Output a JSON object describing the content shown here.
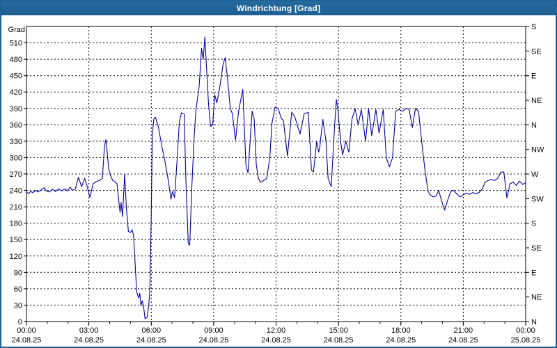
{
  "window": {
    "title": "Windrichtung [Grad]"
  },
  "colors": {
    "titlebar_bg": "#1e6295",
    "border": "#1e6295",
    "plot_bg": "#ffffff",
    "frame": "#000000",
    "grid": "#000000",
    "text": "#000000",
    "line": "#0000a8"
  },
  "chart_data": {
    "type": "line",
    "title": "Windrichtung [Grad]",
    "ylabel_left": "Grad",
    "ylim": [
      0,
      540
    ],
    "xlim_hours": [
      0,
      24
    ],
    "grid": "dashed",
    "legend_position": "none",
    "y_left_ticks": [
      0,
      30,
      60,
      90,
      120,
      150,
      180,
      210,
      240,
      270,
      300,
      330,
      360,
      390,
      420,
      450,
      480,
      510
    ],
    "y_right_ticks": [
      {
        "deg": 0,
        "label": "N"
      },
      {
        "deg": 45,
        "label": "NE"
      },
      {
        "deg": 90,
        "label": "E"
      },
      {
        "deg": 135,
        "label": "SE"
      },
      {
        "deg": 180,
        "label": "S"
      },
      {
        "deg": 225,
        "label": "SW"
      },
      {
        "deg": 270,
        "label": "W"
      },
      {
        "deg": 315,
        "label": "NW"
      },
      {
        "deg": 360,
        "label": "N"
      },
      {
        "deg": 405,
        "label": "NE"
      },
      {
        "deg": 450,
        "label": "E"
      },
      {
        "deg": 495,
        "label": "SE"
      },
      {
        "deg": 540,
        "label": "S"
      }
    ],
    "x_ticks": [
      {
        "hour": 0,
        "time": "00:00",
        "date": "24.08.25"
      },
      {
        "hour": 3,
        "time": "03:00",
        "date": "24.08.25"
      },
      {
        "hour": 6,
        "time": "06:00",
        "date": "24.08.25"
      },
      {
        "hour": 9,
        "time": "09:00",
        "date": "24.08.25"
      },
      {
        "hour": 12,
        "time": "12:00",
        "date": "24.08.25"
      },
      {
        "hour": 15,
        "time": "15:00",
        "date": "24.08.25"
      },
      {
        "hour": 18,
        "time": "18:00",
        "date": "24.08.25"
      },
      {
        "hour": 21,
        "time": "21:00",
        "date": "24.08.25"
      },
      {
        "hour": 24,
        "time": "00:00",
        "date": "25.08.25"
      }
    ],
    "x_minor_step_hours": 1,
    "series": [
      {
        "name": "Windrichtung",
        "color": "#0000a8",
        "points": [
          [
            0.0,
            237
          ],
          [
            0.1,
            234
          ],
          [
            0.2,
            238
          ],
          [
            0.3,
            236
          ],
          [
            0.45,
            240
          ],
          [
            0.55,
            237
          ],
          [
            0.7,
            241
          ],
          [
            0.85,
            245
          ],
          [
            0.95,
            239
          ],
          [
            1.1,
            237
          ],
          [
            1.25,
            242
          ],
          [
            1.4,
            238
          ],
          [
            1.55,
            243
          ],
          [
            1.7,
            239
          ],
          [
            1.85,
            243
          ],
          [
            1.95,
            239
          ],
          [
            2.1,
            246
          ],
          [
            2.2,
            240
          ],
          [
            2.35,
            243
          ],
          [
            2.5,
            264
          ],
          [
            2.65,
            247
          ],
          [
            2.8,
            262
          ],
          [
            2.9,
            250
          ],
          [
            3.05,
            227
          ],
          [
            3.2,
            252
          ],
          [
            3.35,
            256
          ],
          [
            3.5,
            258
          ],
          [
            3.65,
            262
          ],
          [
            3.75,
            320
          ],
          [
            3.82,
            333
          ],
          [
            3.88,
            311
          ],
          [
            3.95,
            280
          ],
          [
            4.05,
            266
          ],
          [
            4.15,
            258
          ],
          [
            4.25,
            256
          ],
          [
            4.35,
            252
          ],
          [
            4.5,
            200
          ],
          [
            4.55,
            218
          ],
          [
            4.62,
            192
          ],
          [
            4.72,
            270
          ],
          [
            4.8,
            210
          ],
          [
            4.9,
            165
          ],
          [
            5.0,
            163
          ],
          [
            5.08,
            168
          ],
          [
            5.15,
            157
          ],
          [
            5.3,
            54
          ],
          [
            5.4,
            43
          ],
          [
            5.45,
            52
          ],
          [
            5.5,
            30
          ],
          [
            5.57,
            38
          ],
          [
            5.63,
            28
          ],
          [
            5.7,
            5
          ],
          [
            5.8,
            8
          ],
          [
            5.88,
            30
          ],
          [
            5.93,
            56
          ],
          [
            6.0,
            200
          ],
          [
            6.05,
            340
          ],
          [
            6.12,
            370
          ],
          [
            6.2,
            374
          ],
          [
            6.35,
            355
          ],
          [
            6.5,
            322
          ],
          [
            6.65,
            295
          ],
          [
            6.8,
            262
          ],
          [
            6.95,
            224
          ],
          [
            7.02,
            238
          ],
          [
            7.12,
            227
          ],
          [
            7.25,
            300
          ],
          [
            7.35,
            365
          ],
          [
            7.45,
            382
          ],
          [
            7.58,
            380
          ],
          [
            7.68,
            240
          ],
          [
            7.78,
            143
          ],
          [
            7.85,
            140
          ],
          [
            7.95,
            245
          ],
          [
            8.05,
            330
          ],
          [
            8.15,
            388
          ],
          [
            8.3,
            430
          ],
          [
            8.42,
            500
          ],
          [
            8.5,
            480
          ],
          [
            8.58,
            521
          ],
          [
            8.65,
            470
          ],
          [
            8.75,
            400
          ],
          [
            8.85,
            357
          ],
          [
            8.95,
            360
          ],
          [
            9.05,
            415
          ],
          [
            9.15,
            400
          ],
          [
            9.3,
            430
          ],
          [
            9.45,
            470
          ],
          [
            9.55,
            483
          ],
          [
            9.65,
            450
          ],
          [
            9.8,
            390
          ],
          [
            9.9,
            380
          ],
          [
            10.05,
            332
          ],
          [
            10.2,
            385
          ],
          [
            10.4,
            425
          ],
          [
            10.55,
            287
          ],
          [
            10.65,
            272
          ],
          [
            10.85,
            385
          ],
          [
            10.95,
            370
          ],
          [
            11.05,
            287
          ],
          [
            11.15,
            262
          ],
          [
            11.25,
            255
          ],
          [
            11.4,
            258
          ],
          [
            11.55,
            262
          ],
          [
            11.7,
            300
          ],
          [
            11.8,
            362
          ],
          [
            11.95,
            392
          ],
          [
            12.1,
            390
          ],
          [
            12.25,
            372
          ],
          [
            12.35,
            368
          ],
          [
            12.55,
            303
          ],
          [
            12.75,
            383
          ],
          [
            12.9,
            375
          ],
          [
            13.15,
            343
          ],
          [
            13.35,
            380
          ],
          [
            13.55,
            383
          ],
          [
            13.7,
            277
          ],
          [
            13.8,
            274
          ],
          [
            13.95,
            330
          ],
          [
            14.05,
            310
          ],
          [
            14.1,
            318
          ],
          [
            14.25,
            370
          ],
          [
            14.4,
            330
          ],
          [
            14.5,
            262
          ],
          [
            14.65,
            247
          ],
          [
            14.8,
            350
          ],
          [
            14.9,
            406
          ],
          [
            14.97,
            390
          ],
          [
            15.1,
            330
          ],
          [
            15.2,
            305
          ],
          [
            15.35,
            330
          ],
          [
            15.5,
            310
          ],
          [
            15.65,
            370
          ],
          [
            15.8,
            390
          ],
          [
            15.95,
            360
          ],
          [
            16.1,
            388
          ],
          [
            16.3,
            330
          ],
          [
            16.45,
            390
          ],
          [
            16.6,
            340
          ],
          [
            16.8,
            388
          ],
          [
            16.95,
            345
          ],
          [
            17.15,
            388
          ],
          [
            17.3,
            300
          ],
          [
            17.45,
            283
          ],
          [
            17.6,
            300
          ],
          [
            17.75,
            385
          ],
          [
            17.9,
            388
          ],
          [
            18.1,
            385
          ],
          [
            18.25,
            390
          ],
          [
            18.4,
            388
          ],
          [
            18.55,
            355
          ],
          [
            18.7,
            390
          ],
          [
            18.85,
            385
          ],
          [
            19.0,
            330
          ],
          [
            19.15,
            280
          ],
          [
            19.3,
            240
          ],
          [
            19.4,
            232
          ],
          [
            19.55,
            228
          ],
          [
            19.7,
            230
          ],
          [
            19.82,
            240
          ],
          [
            19.95,
            222
          ],
          [
            20.1,
            204
          ],
          [
            20.25,
            222
          ],
          [
            20.4,
            238
          ],
          [
            20.55,
            240
          ],
          [
            20.7,
            233
          ],
          [
            20.85,
            228
          ],
          [
            21.0,
            232
          ],
          [
            21.15,
            235
          ],
          [
            21.3,
            233
          ],
          [
            21.45,
            236
          ],
          [
            21.6,
            234
          ],
          [
            21.75,
            236
          ],
          [
            21.9,
            242
          ],
          [
            22.05,
            255
          ],
          [
            22.2,
            258
          ],
          [
            22.35,
            260
          ],
          [
            22.5,
            258
          ],
          [
            22.65,
            262
          ],
          [
            22.8,
            273
          ],
          [
            22.95,
            274
          ],
          [
            23.1,
            226
          ],
          [
            23.25,
            252
          ],
          [
            23.4,
            255
          ],
          [
            23.55,
            249
          ],
          [
            23.7,
            257
          ],
          [
            23.85,
            251
          ],
          [
            24.0,
            254
          ]
        ]
      }
    ]
  }
}
